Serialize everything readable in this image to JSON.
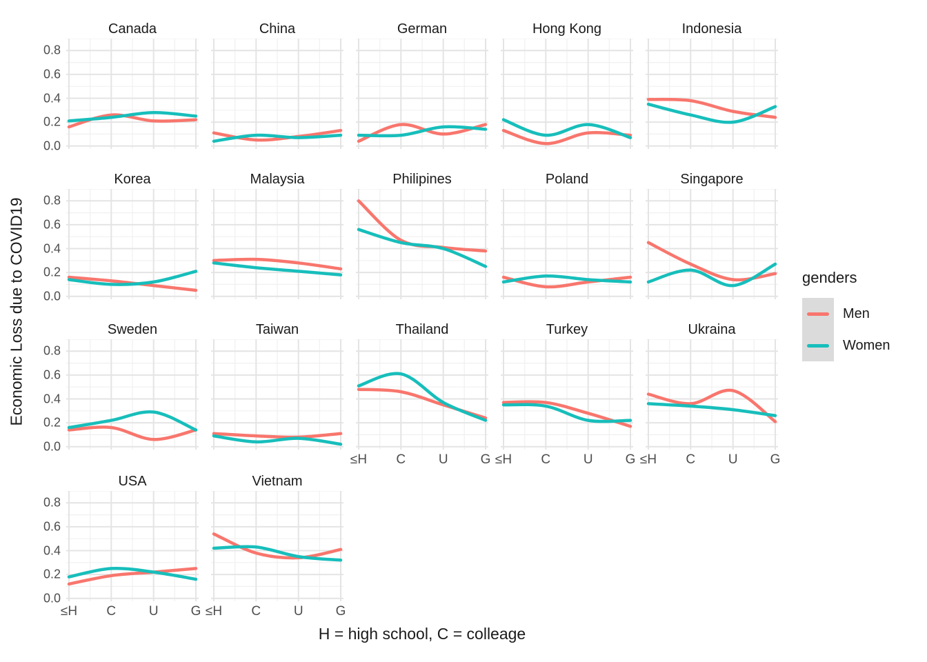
{
  "chart_data": {
    "type": "line",
    "title": "",
    "ylabel": "Economic Loss due to COVID19",
    "xlabel": "H = high school, C = colleage",
    "x_categories": [
      "≤H",
      "C",
      "U",
      "G"
    ],
    "y_tick_labels": [
      "0.8",
      "0.6",
      "0.4",
      "0.2",
      "0.0"
    ],
    "y_tick_values": [
      0.8,
      0.6,
      0.4,
      0.2,
      0.0
    ],
    "ylim": [
      -0.02,
      0.9
    ],
    "grid": true,
    "legend": {
      "title": "genders",
      "position": "right",
      "items": [
        {
          "label": "Men",
          "color": "#F8766D"
        },
        {
          "label": "Women",
          "color": "#17BEBB"
        }
      ]
    },
    "colors": {
      "men": "#F8766D",
      "women": "#17BEBB",
      "grid_major": "#E4E4E4",
      "grid_minor": "#F0F0F0",
      "axis_text": "#4D4D4D",
      "title_text": "#1A1A1A",
      "legend_key_bg": "#DBDBDB",
      "background": "#FFFFFF"
    },
    "rows": [
      [
        {
          "title": "Canada",
          "show_xaxis": false,
          "series": [
            {
              "name": "Men",
              "values": [
                0.16,
                0.26,
                0.21,
                0.22
              ]
            },
            {
              "name": "Women",
              "values": [
                0.21,
                0.24,
                0.28,
                0.25
              ]
            }
          ]
        },
        {
          "title": "China",
          "show_xaxis": false,
          "series": [
            {
              "name": "Men",
              "values": [
                0.11,
                0.05,
                0.08,
                0.13
              ]
            },
            {
              "name": "Women",
              "values": [
                0.04,
                0.09,
                0.07,
                0.09
              ]
            }
          ]
        },
        {
          "title": "German",
          "show_xaxis": false,
          "series": [
            {
              "name": "Men",
              "values": [
                0.04,
                0.18,
                0.1,
                0.18
              ]
            },
            {
              "name": "Women",
              "values": [
                0.09,
                0.09,
                0.16,
                0.14
              ]
            }
          ]
        },
        {
          "title": "Hong Kong",
          "show_xaxis": false,
          "series": [
            {
              "name": "Men",
              "values": [
                0.13,
                0.02,
                0.11,
                0.09
              ]
            },
            {
              "name": "Women",
              "values": [
                0.22,
                0.09,
                0.18,
                0.07
              ]
            }
          ]
        },
        {
          "title": "Indonesia",
          "show_xaxis": false,
          "series": [
            {
              "name": "Men",
              "values": [
                0.39,
                0.38,
                0.29,
                0.24
              ]
            },
            {
              "name": "Women",
              "values": [
                0.35,
                0.26,
                0.2,
                0.33
              ]
            }
          ]
        }
      ],
      [
        {
          "title": "Korea",
          "show_xaxis": false,
          "series": [
            {
              "name": "Men",
              "values": [
                0.16,
                0.13,
                0.09,
                0.05
              ]
            },
            {
              "name": "Women",
              "values": [
                0.14,
                0.1,
                0.12,
                0.21
              ]
            }
          ]
        },
        {
          "title": "Malaysia",
          "show_xaxis": false,
          "series": [
            {
              "name": "Men",
              "values": [
                0.3,
                0.31,
                0.28,
                0.23
              ]
            },
            {
              "name": "Women",
              "values": [
                0.28,
                0.24,
                0.21,
                0.18
              ]
            }
          ]
        },
        {
          "title": "Philipines",
          "show_xaxis": false,
          "series": [
            {
              "name": "Men",
              "values": [
                0.8,
                0.47,
                0.41,
                0.38
              ]
            },
            {
              "name": "Women",
              "values": [
                0.56,
                0.45,
                0.4,
                0.25
              ]
            }
          ]
        },
        {
          "title": "Poland",
          "show_xaxis": false,
          "series": [
            {
              "name": "Men",
              "values": [
                0.16,
                0.08,
                0.12,
                0.16
              ]
            },
            {
              "name": "Women",
              "values": [
                0.12,
                0.17,
                0.14,
                0.12
              ]
            }
          ]
        },
        {
          "title": "Singapore",
          "show_xaxis": false,
          "series": [
            {
              "name": "Men",
              "values": [
                0.45,
                0.27,
                0.14,
                0.19
              ]
            },
            {
              "name": "Women",
              "values": [
                0.12,
                0.22,
                0.09,
                0.27
              ]
            }
          ]
        }
      ],
      [
        {
          "title": "Sweden",
          "show_xaxis": false,
          "series": [
            {
              "name": "Men",
              "values": [
                0.14,
                0.16,
                0.06,
                0.14
              ]
            },
            {
              "name": "Women",
              "values": [
                0.16,
                0.22,
                0.29,
                0.14
              ]
            }
          ]
        },
        {
          "title": "Taiwan",
          "show_xaxis": false,
          "series": [
            {
              "name": "Men",
              "values": [
                0.11,
                0.09,
                0.08,
                0.11
              ]
            },
            {
              "name": "Women",
              "values": [
                0.09,
                0.04,
                0.07,
                0.02
              ]
            }
          ]
        },
        {
          "title": "Thailand",
          "show_xaxis": true,
          "series": [
            {
              "name": "Men",
              "values": [
                0.48,
                0.46,
                0.35,
                0.24
              ]
            },
            {
              "name": "Women",
              "values": [
                0.51,
                0.61,
                0.37,
                0.22
              ]
            }
          ]
        },
        {
          "title": "Turkey",
          "show_xaxis": true,
          "series": [
            {
              "name": "Men",
              "values": [
                0.37,
                0.37,
                0.28,
                0.17
              ]
            },
            {
              "name": "Women",
              "values": [
                0.35,
                0.34,
                0.22,
                0.22
              ]
            }
          ]
        },
        {
          "title": "Ukraina",
          "show_xaxis": true,
          "series": [
            {
              "name": "Men",
              "values": [
                0.44,
                0.36,
                0.47,
                0.21
              ]
            },
            {
              "name": "Women",
              "values": [
                0.36,
                0.34,
                0.31,
                0.26
              ]
            }
          ]
        }
      ],
      [
        {
          "title": "USA",
          "show_xaxis": true,
          "series": [
            {
              "name": "Men",
              "values": [
                0.12,
                0.19,
                0.22,
                0.25
              ]
            },
            {
              "name": "Women",
              "values": [
                0.18,
                0.25,
                0.22,
                0.16
              ]
            }
          ]
        },
        {
          "title": "Vietnam",
          "show_xaxis": true,
          "series": [
            {
              "name": "Men",
              "values": [
                0.54,
                0.38,
                0.34,
                0.41
              ]
            },
            {
              "name": "Women",
              "values": [
                0.42,
                0.43,
                0.35,
                0.32
              ]
            }
          ]
        }
      ]
    ]
  }
}
